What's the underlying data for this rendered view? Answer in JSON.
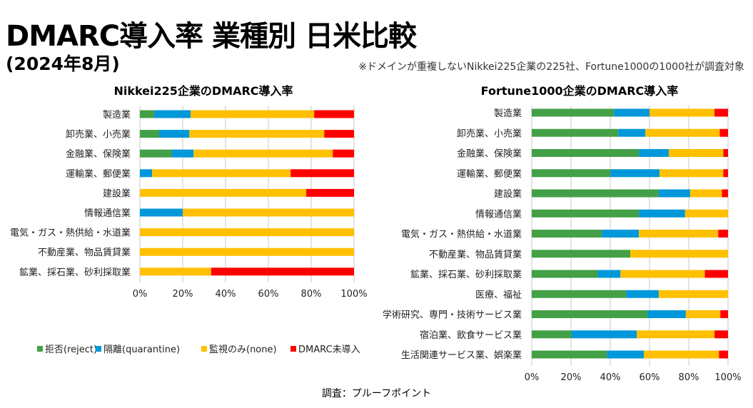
{
  "header": {
    "title": "DMARC導入率 業種別 日米比較",
    "date": "(2024年8月)",
    "note": "※ドメインが重複しないNikkei225企業の225社、Fortune1000の1000社が調査対象"
  },
  "footer": {
    "source": "調査：プルーフポイント"
  },
  "legend": [
    {
      "label": "拒否(reject)",
      "color": "#43a047"
    },
    {
      "label": "隔離(quarantine)",
      "color": "#0097db"
    },
    {
      "label": "監視のみ(none)",
      "color": "#ffc000"
    },
    {
      "label": "DMARC未導入",
      "color": "#ff0000"
    }
  ],
  "chart_data": [
    {
      "type": "bar",
      "orientation": "horizontal",
      "stacked": true,
      "title": "Nikkei225企業のDMARC導入率",
      "xlim": [
        0,
        100
      ],
      "xticks": [
        "0%",
        "20%",
        "40%",
        "60%",
        "80%",
        "100%"
      ],
      "grid": true,
      "legend_placement": "bottom",
      "categories": [
        "製造業",
        "卸売業、小売業",
        "金融業、保険業",
        "運輸業、郵便業",
        "建設業",
        "情報通信業",
        "電気・ガス・熱供給・水道業",
        "不動産業、物品賃貸業",
        "鉱業、採石業、砂利採取業"
      ],
      "series": [
        {
          "name": "拒否(reject)",
          "values": [
            6.7,
            9.0,
            15.0,
            0,
            0,
            0,
            0,
            0,
            0
          ]
        },
        {
          "name": "隔離(quarantine)",
          "values": [
            17.0,
            14.1,
            10.1,
            5.7,
            0,
            20.0,
            0,
            0,
            0
          ]
        },
        {
          "name": "監視のみ(none)",
          "values": [
            57.7,
            63.0,
            65.0,
            64.7,
            77.7,
            80.0,
            100,
            100,
            33.3
          ]
        },
        {
          "name": "DMARC未導入",
          "values": [
            18.6,
            13.9,
            9.9,
            29.6,
            22.3,
            0,
            0,
            0,
            66.7
          ]
        }
      ]
    },
    {
      "type": "bar",
      "orientation": "horizontal",
      "stacked": true,
      "title": "Fortune1000企業のDMARC導入率",
      "xlim": [
        0,
        100
      ],
      "xticks": [
        "0%",
        "20%",
        "40%",
        "60%",
        "80%",
        "100%"
      ],
      "grid": true,
      "categories": [
        "製造業",
        "卸売業、小売業",
        "金融業、保険業",
        "運輸業、郵便業",
        "建設業",
        "情報通信業",
        "電気・ガス・熱供給・水道業",
        "不動産業、物品賃貸業",
        "鉱業、採石業、砂利採取業",
        "医療、福祉",
        "学術研究、専門・技術サービス業",
        "宿泊業、飲食サービス業",
        "生活関連サービス業、娯楽業"
      ],
      "series": [
        {
          "name": "拒否(reject)",
          "values": [
            41.9,
            44.1,
            54.6,
            40.1,
            64.7,
            54.6,
            35.7,
            50.2,
            33.6,
            48.1,
            58.9,
            20.2,
            38.3
          ]
        },
        {
          "name": "隔離(quarantine)",
          "values": [
            18.1,
            13.8,
            15.2,
            25.0,
            16.0,
            23.5,
            18.9,
            0,
            11.6,
            16.6,
            19.6,
            33.3,
            18.8
          ]
        },
        {
          "name": "監視のみ(none)",
          "values": [
            33.1,
            37.9,
            27.8,
            32.5,
            16.2,
            21.9,
            40.4,
            49.8,
            43.0,
            35.3,
            17.6,
            39.6,
            38.3
          ]
        },
        {
          "name": "DMARC未導入",
          "values": [
            6.9,
            4.2,
            2.4,
            2.4,
            3.1,
            0,
            5.0,
            0,
            11.8,
            0,
            3.9,
            6.9,
            4.6
          ]
        }
      ]
    }
  ]
}
